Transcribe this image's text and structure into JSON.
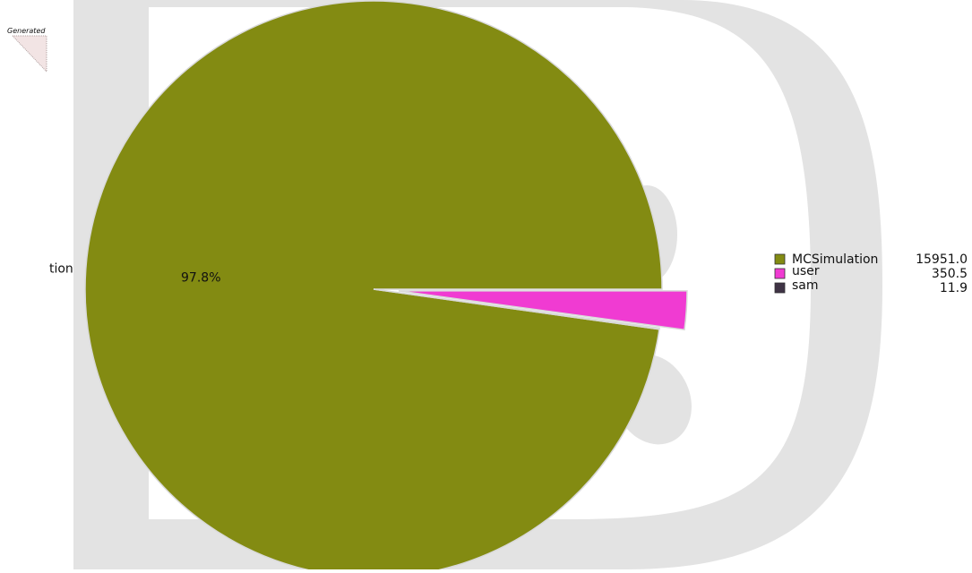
{
  "generated_stamp": "Generated",
  "colors": {
    "watermark": "#e3e3e3",
    "stamp_fill": "#f2e4e4",
    "slice_edge": "#d9d9d9",
    "text": "#111111"
  },
  "chart_data": {
    "type": "pie",
    "title": "",
    "labels": [
      "MCSimulation",
      "user",
      "sam"
    ],
    "values": [
      15951.0,
      350.5,
      11.9
    ],
    "value_labels": [
      "15951.0",
      "350.5",
      "11.9"
    ],
    "colors": [
      "#838b12",
      "#f03bd2",
      "#3f3345"
    ],
    "exploded": [
      false,
      true,
      false
    ],
    "slice_labels": [
      "tion",
      "",
      ""
    ],
    "percent_labels": [
      "97.8%",
      "",
      ""
    ],
    "legend_position": "right"
  }
}
